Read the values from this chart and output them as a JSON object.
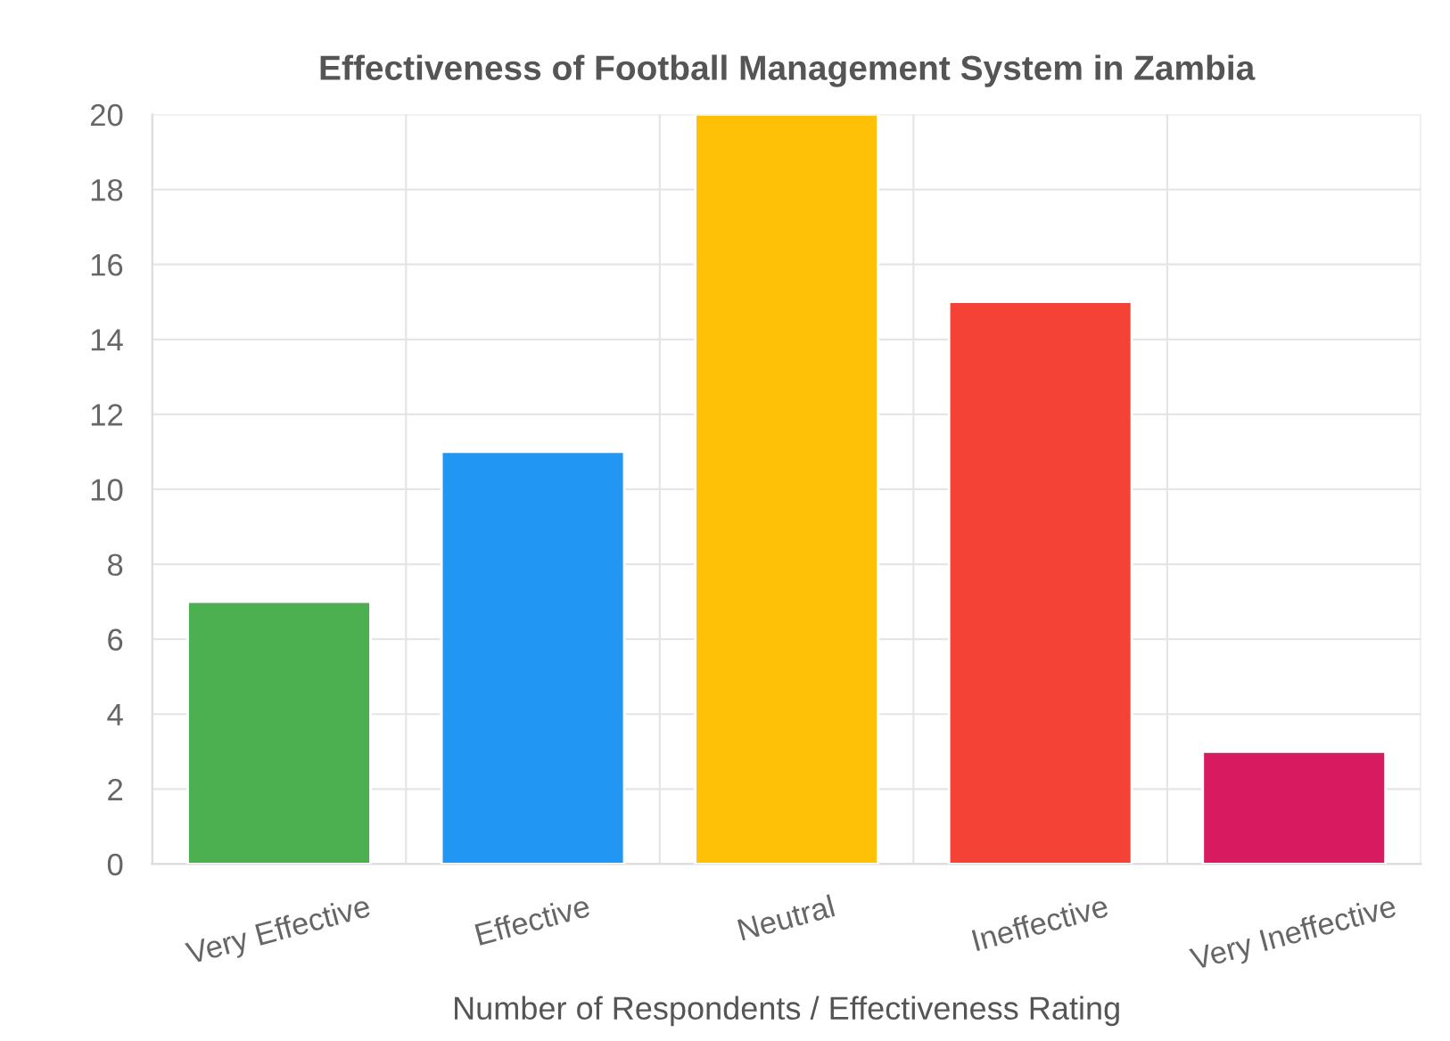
{
  "chart_data": {
    "type": "bar",
    "title": "Effectiveness of Football Management System in Zambia",
    "xlabel": "Number of Respondents / Effectiveness Rating",
    "categories": [
      "Very Effective",
      "Effective",
      "Neutral",
      "Ineffective",
      "Very Ineffective"
    ],
    "values": [
      7,
      11,
      20,
      15,
      3
    ],
    "colors": [
      "#4caf50",
      "#2196f3",
      "#ffc107",
      "#f44336",
      "#d81b60"
    ],
    "ylim": [
      0,
      20
    ],
    "yticks": [
      0,
      2,
      4,
      6,
      8,
      10,
      12,
      14,
      16,
      18,
      20
    ],
    "grid": true
  }
}
